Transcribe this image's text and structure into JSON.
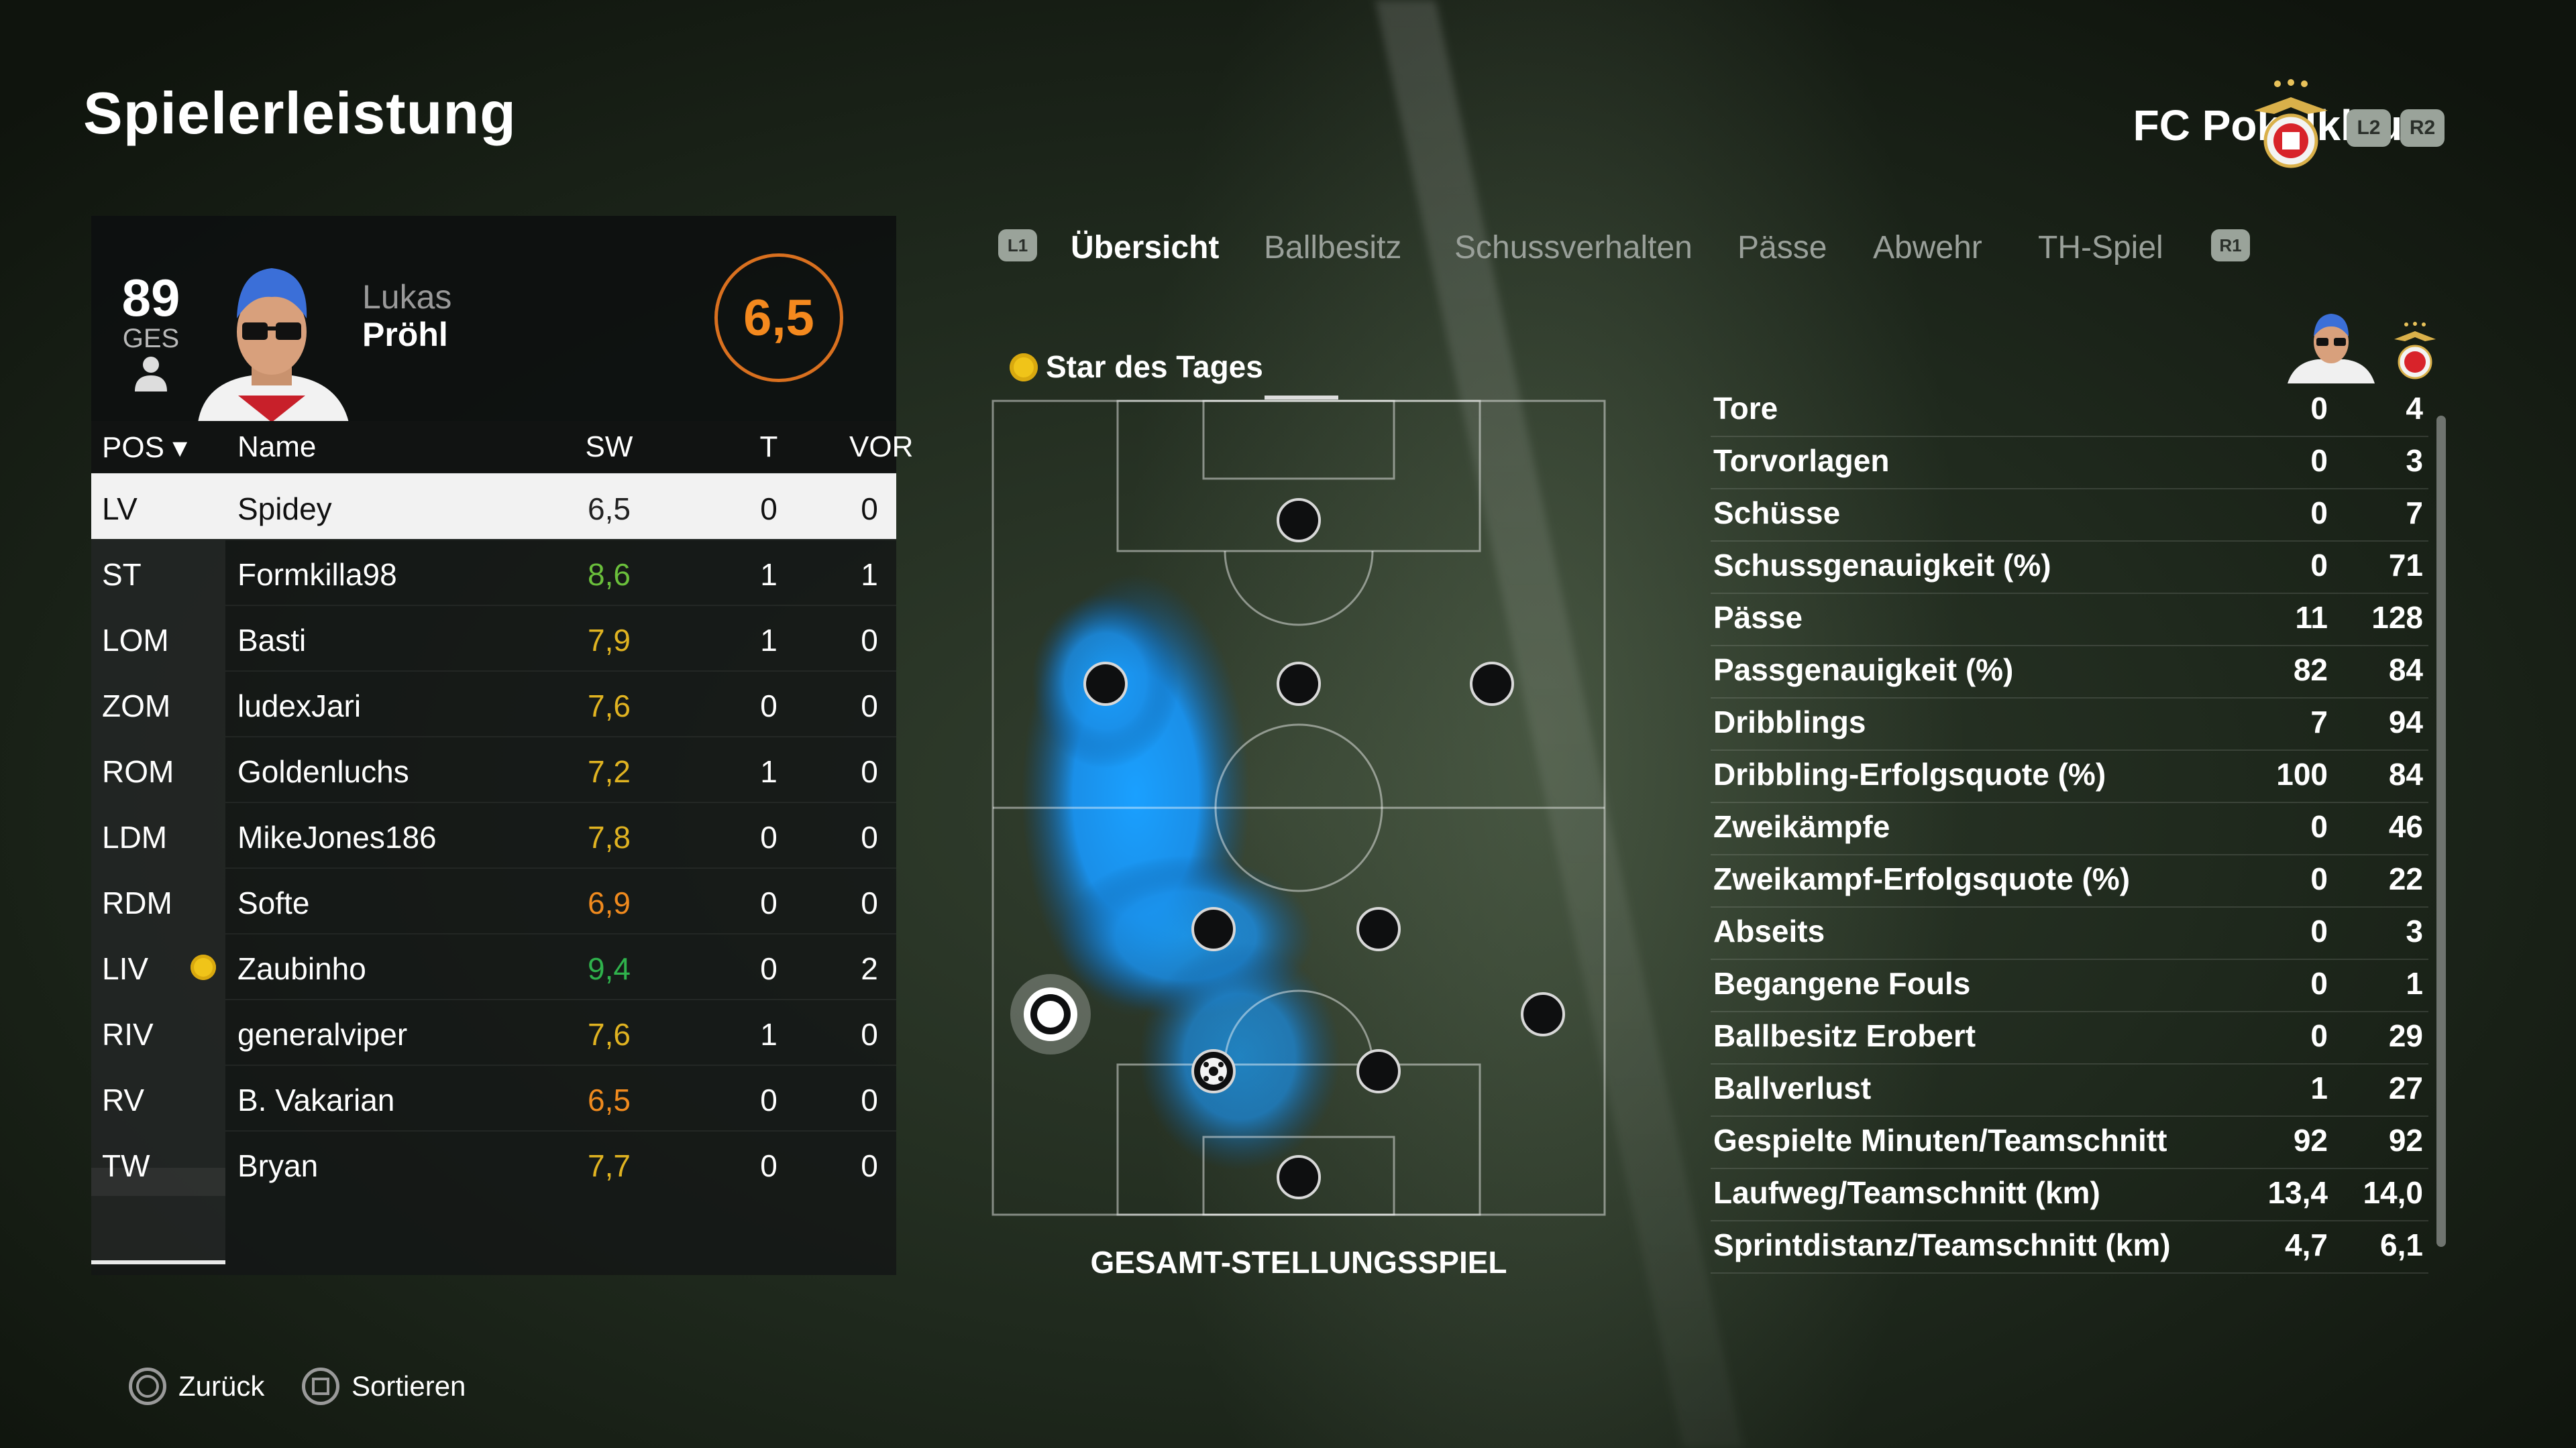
{
  "header": {
    "title": "Spielerleistung",
    "club": "FC Pokalklauer",
    "l2": "L2",
    "r2": "R2"
  },
  "player": {
    "rating_overall": "89",
    "rating_label": "GES",
    "first_name": "Lukas",
    "last_name": "Pröhl",
    "match_rating": "6,5"
  },
  "table": {
    "headers": {
      "pos": "POS",
      "name": "Name",
      "sw": "SW",
      "t": "T",
      "vor": "VOR"
    },
    "rows": [
      {
        "pos": "LV",
        "name": "Spidey",
        "sw": "6,5",
        "t": "0",
        "vor": "0",
        "sw_color": "#222222",
        "selected": true,
        "star": false
      },
      {
        "pos": "ST",
        "name": "Formkilla98",
        "sw": "8,6",
        "t": "1",
        "vor": "1",
        "sw_color": "#6abf3b",
        "selected": false,
        "star": false
      },
      {
        "pos": "LOM",
        "name": "Basti",
        "sw": "7,9",
        "t": "1",
        "vor": "0",
        "sw_color": "#e0b321",
        "selected": false,
        "star": false
      },
      {
        "pos": "ZOM",
        "name": "ludexJari",
        "sw": "7,6",
        "t": "0",
        "vor": "0",
        "sw_color": "#e0b321",
        "selected": false,
        "star": false
      },
      {
        "pos": "ROM",
        "name": "Goldenluchs",
        "sw": "7,2",
        "t": "1",
        "vor": "0",
        "sw_color": "#e0b321",
        "selected": false,
        "star": false
      },
      {
        "pos": "LDM",
        "name": "MikeJones186",
        "sw": "7,8",
        "t": "0",
        "vor": "0",
        "sw_color": "#e0b321",
        "selected": false,
        "star": false
      },
      {
        "pos": "RDM",
        "name": "Softe",
        "sw": "6,9",
        "t": "0",
        "vor": "0",
        "sw_color": "#f08a1e",
        "selected": false,
        "star": false
      },
      {
        "pos": "LIV",
        "name": "Zaubinho",
        "sw": "9,4",
        "t": "0",
        "vor": "2",
        "sw_color": "#2fb24c",
        "selected": false,
        "star": true
      },
      {
        "pos": "RIV",
        "name": "generalviper",
        "sw": "7,6",
        "t": "1",
        "vor": "0",
        "sw_color": "#e0b321",
        "selected": false,
        "star": false
      },
      {
        "pos": "RV",
        "name": "B. Vakarian",
        "sw": "6,5",
        "t": "0",
        "vor": "0",
        "sw_color": "#f08a1e",
        "selected": false,
        "star": false
      },
      {
        "pos": "TW",
        "name": "Bryan",
        "sw": "7,7",
        "t": "0",
        "vor": "0",
        "sw_color": "#e0b321",
        "selected": false,
        "star": false
      }
    ]
  },
  "tabs": {
    "l1": "L1",
    "r1": "R1",
    "items": [
      "Übersicht",
      "Ballbesitz",
      "Schussverhalten",
      "Pässe",
      "Abwehr",
      "TH-Spiel"
    ],
    "active": "Übersicht"
  },
  "pitch": {
    "star_label": "Star des Tages",
    "caption": "GESAMT-STELLUNGSSPIEL"
  },
  "stats": [
    {
      "label": "Tore",
      "player": "0",
      "team": "4"
    },
    {
      "label": "Torvorlagen",
      "player": "0",
      "team": "3"
    },
    {
      "label": "Schüsse",
      "player": "0",
      "team": "7"
    },
    {
      "label": "Schussgenauigkeit (%)",
      "player": "0",
      "team": "71"
    },
    {
      "label": "Pässe",
      "player": "11",
      "team": "128"
    },
    {
      "label": "Passgenauigkeit (%)",
      "player": "82",
      "team": "84"
    },
    {
      "label": "Dribblings",
      "player": "7",
      "team": "94"
    },
    {
      "label": "Dribbling-Erfolgsquote (%)",
      "player": "100",
      "team": "84"
    },
    {
      "label": "Zweikämpfe",
      "player": "0",
      "team": "46"
    },
    {
      "label": "Zweikampf-Erfolgsquote (%)",
      "player": "0",
      "team": "22"
    },
    {
      "label": "Abseits",
      "player": "0",
      "team": "3"
    },
    {
      "label": "Begangene Fouls",
      "player": "0",
      "team": "1"
    },
    {
      "label": "Ballbesitz Erobert",
      "player": "0",
      "team": "29"
    },
    {
      "label": "Ballverlust",
      "player": "1",
      "team": "27"
    },
    {
      "label": "Gespielte Minuten/Teamschnitt",
      "player": "92",
      "team": "92"
    },
    {
      "label": "Laufweg/Teamschnitt (km)",
      "player": "13,4",
      "team": "14,0"
    },
    {
      "label": "Sprintdistanz/Teamschnitt (km)",
      "player": "4,7",
      "team": "6,1"
    }
  ],
  "footer": {
    "back": "Zurück",
    "sort": "Sortieren"
  },
  "colors": {
    "accent_orange": "#f4891e",
    "heatmap_blue": "#1aa0ff"
  }
}
